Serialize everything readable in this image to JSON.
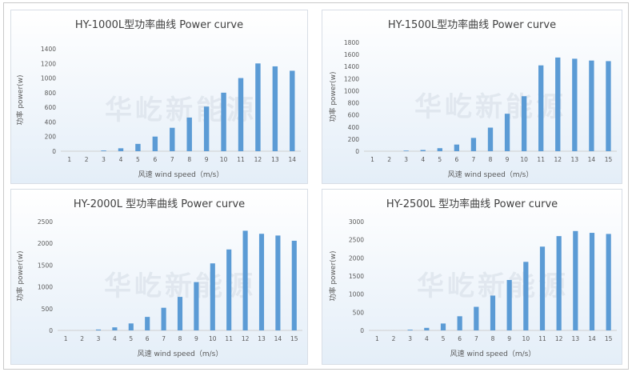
{
  "watermark": "华屹新能源",
  "colors": {
    "bar": "#5b9bd5",
    "axis": "#d0d0d0",
    "text": "#595959"
  },
  "chart_data": [
    {
      "type": "bar",
      "title": "HY-1000L型功率曲线 Power curve",
      "xlabel": "风速 wind speed（m/s）",
      "ylabel": "功率 power(w)",
      "categories": [
        "1",
        "2",
        "3",
        "4",
        "5",
        "6",
        "7",
        "8",
        "9",
        "10",
        "11",
        "12",
        "13",
        "14"
      ],
      "values": [
        0,
        0,
        10,
        40,
        100,
        200,
        320,
        460,
        610,
        800,
        1000,
        1200,
        1160,
        1100
      ],
      "ylim": [
        0,
        1400
      ],
      "yticks": [
        0,
        200,
        400,
        600,
        800,
        1000,
        1200,
        1400
      ],
      "grid": false
    },
    {
      "type": "bar",
      "title": "HY-1500L型功率曲线 Power curve",
      "xlabel": "风速 wind speed（m/s）",
      "ylabel": "功率 power(w)",
      "categories": [
        "1",
        "2",
        "3",
        "4",
        "5",
        "6",
        "7",
        "8",
        "9",
        "10",
        "11",
        "12",
        "13",
        "14",
        "15"
      ],
      "values": [
        0,
        0,
        10,
        20,
        50,
        110,
        220,
        390,
        620,
        910,
        1420,
        1550,
        1530,
        1500,
        1490
      ],
      "ylim": [
        0,
        1800
      ],
      "yticks": [
        0,
        200,
        400,
        600,
        800,
        1000,
        1200,
        1400,
        1600,
        1800
      ],
      "grid": false
    },
    {
      "type": "bar",
      "title": "HY-2000L 型功率曲线 Power curve",
      "xlabel": "风速 wind speed（m/s）",
      "ylabel": "功率 power(w)",
      "categories": [
        "1",
        "2",
        "3",
        "4",
        "5",
        "6",
        "7",
        "8",
        "9",
        "10",
        "11",
        "12",
        "13",
        "14",
        "15"
      ],
      "values": [
        0,
        0,
        20,
        70,
        160,
        310,
        520,
        770,
        1110,
        1540,
        1860,
        2290,
        2220,
        2180,
        2060
      ],
      "ylim": [
        0,
        2500
      ],
      "yticks": [
        0,
        500,
        1000,
        1500,
        2000,
        2500
      ],
      "grid": false
    },
    {
      "type": "bar",
      "title": "HY-2500L 型功率曲线 Power curve",
      "xlabel": "风速 wind speed（m/s）",
      "ylabel": "功率 power(w)",
      "categories": [
        "1",
        "2",
        "3",
        "4",
        "5",
        "6",
        "7",
        "8",
        "9",
        "10",
        "11",
        "12",
        "13",
        "14",
        "15"
      ],
      "values": [
        0,
        0,
        20,
        70,
        190,
        390,
        650,
        960,
        1390,
        1890,
        2310,
        2600,
        2740,
        2690,
        2660
      ],
      "ylim": [
        0,
        3000
      ],
      "yticks": [
        0,
        500,
        1000,
        1500,
        2000,
        2500,
        3000
      ],
      "grid": false
    }
  ]
}
